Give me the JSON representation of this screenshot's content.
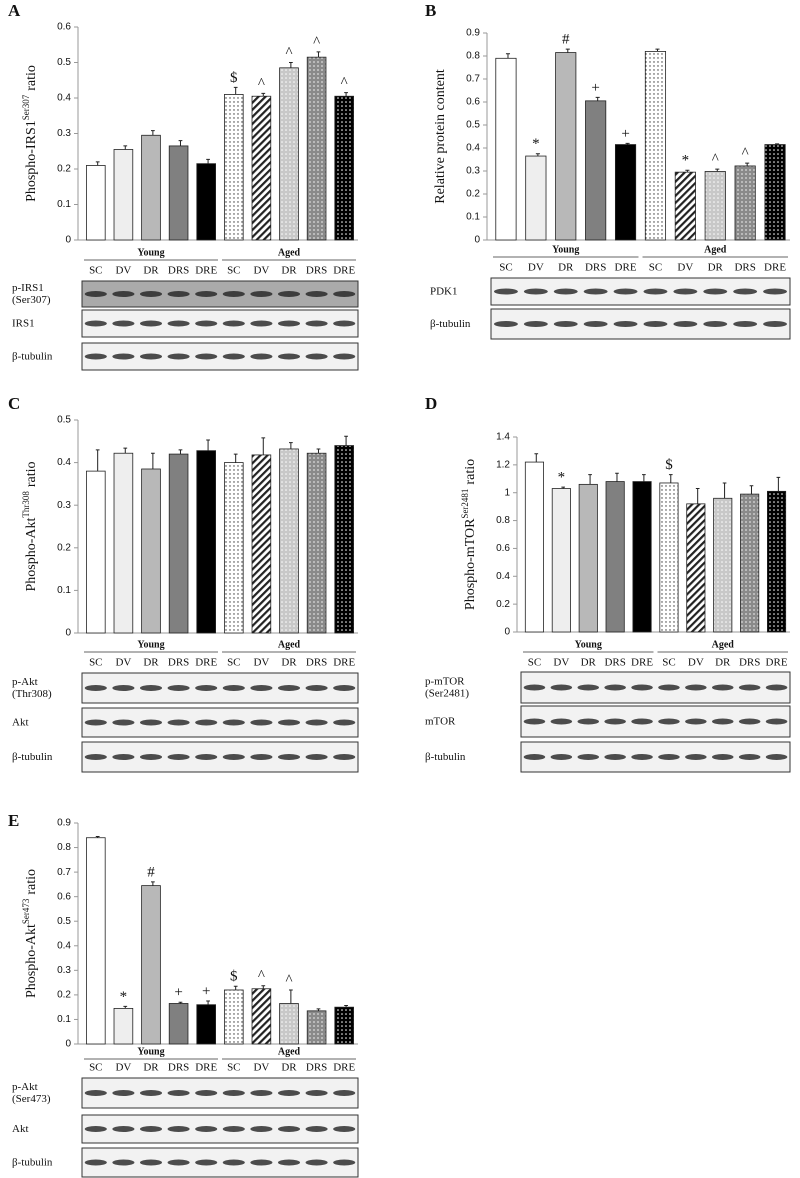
{
  "chart_data": [
    {
      "type": "bar",
      "panel_label": "A",
      "y_label": [
        "Phospho-IRS1",
        "Ser307",
        "ratio"
      ],
      "categories": [
        "SC",
        "DV",
        "DR",
        "DRS",
        "DRE",
        "SC",
        "DV",
        "DR",
        "DRS",
        "DRE"
      ],
      "groups": [
        "Young",
        "Aged"
      ],
      "values": [
        0.21,
        0.255,
        0.295,
        0.265,
        0.215,
        0.41,
        0.405,
        0.485,
        0.515,
        0.405
      ],
      "errors": [
        0.01,
        0.01,
        0.013,
        0.015,
        0.012,
        0.02,
        0.008,
        0.015,
        0.015,
        0.01
      ],
      "annotations": [
        null,
        null,
        null,
        null,
        null,
        "$",
        "^",
        "^",
        "^",
        "^"
      ],
      "ylim": [
        0,
        0.6
      ],
      "yticks": [
        0,
        0.1,
        0.2,
        0.3,
        0.4,
        0.5,
        0.6
      ],
      "blots": [
        [
          "p-IRS1",
          "(Ser307)"
        ],
        [
          "IRS1"
        ],
        [
          "β-tubulin"
        ]
      ]
    },
    {
      "type": "bar",
      "panel_label": "B",
      "y_label": [
        "Relative protein content"
      ],
      "categories": [
        "SC",
        "DV",
        "DR",
        "DRS",
        "DRE",
        "SC",
        "DV",
        "DR",
        "DRS",
        "DRE"
      ],
      "groups": [
        "Young",
        "Aged"
      ],
      "values": [
        0.79,
        0.365,
        0.815,
        0.605,
        0.415,
        0.82,
        0.295,
        0.298,
        0.322,
        0.415
      ],
      "errors": [
        0.02,
        0.01,
        0.015,
        0.015,
        0.005,
        0.01,
        0.008,
        0.01,
        0.012,
        0.003
      ],
      "annotations": [
        null,
        "*",
        "#",
        "+",
        "+",
        null,
        "*",
        "^",
        "^",
        null
      ],
      "ylim": [
        0,
        0.9
      ],
      "yticks": [
        0,
        0.1,
        0.2,
        0.3,
        0.4,
        0.5,
        0.6,
        0.7,
        0.8,
        0.9
      ],
      "blots": [
        [
          "PDK1"
        ],
        [
          "β-tubulin"
        ]
      ]
    },
    {
      "type": "bar",
      "panel_label": "C",
      "y_label": [
        "Phospho-Akt",
        "Thr308",
        "ratio"
      ],
      "categories": [
        "SC",
        "DV",
        "DR",
        "DRS",
        "DRE",
        "SC",
        "DV",
        "DR",
        "DRS",
        "DRE"
      ],
      "groups": [
        "Young",
        "Aged"
      ],
      "values": [
        0.38,
        0.422,
        0.385,
        0.42,
        0.428,
        0.4,
        0.418,
        0.432,
        0.422,
        0.44
      ],
      "errors": [
        0.05,
        0.012,
        0.037,
        0.01,
        0.025,
        0.02,
        0.04,
        0.015,
        0.01,
        0.022
      ],
      "annotations": [
        null,
        null,
        null,
        null,
        null,
        null,
        null,
        null,
        null,
        null
      ],
      "ylim": [
        0,
        0.5
      ],
      "yticks": [
        0,
        0.1,
        0.2,
        0.3,
        0.4,
        0.5
      ],
      "blots": [
        [
          "p-Akt",
          "(Thr308)"
        ],
        [
          "Akt"
        ],
        [
          "β-tubulin"
        ]
      ]
    },
    {
      "type": "bar",
      "panel_label": "D",
      "y_label": [
        "Phospho-mTOR",
        "Ser2481",
        "ratio"
      ],
      "categories": [
        "SC",
        "DV",
        "DR",
        "DRS",
        "DRE",
        "SC",
        "DV",
        "DR",
        "DRS",
        "DRE"
      ],
      "groups": [
        "Young",
        "Aged"
      ],
      "values": [
        1.22,
        1.03,
        1.06,
        1.08,
        1.08,
        1.07,
        0.92,
        0.96,
        0.99,
        1.01
      ],
      "errors": [
        0.06,
        0.01,
        0.07,
        0.06,
        0.05,
        0.06,
        0.11,
        0.11,
        0.06,
        0.1
      ],
      "annotations": [
        null,
        "*",
        null,
        null,
        null,
        "$",
        null,
        null,
        null,
        null
      ],
      "ylim": [
        0,
        1.4
      ],
      "yticks": [
        0,
        0.2,
        0.4,
        0.6,
        0.8,
        1,
        1.2,
        1.4
      ],
      "blots": [
        [
          "p-mTOR",
          "(Ser2481)"
        ],
        [
          "mTOR"
        ],
        [
          "β-tubulin"
        ]
      ]
    },
    {
      "type": "bar",
      "panel_label": "E",
      "y_label": [
        "Phospho-Akt",
        "Ser473",
        "ratio"
      ],
      "categories": [
        "SC",
        "DV",
        "DR",
        "DRS",
        "DRE",
        "SC",
        "DV",
        "DR",
        "DRS",
        "DRE"
      ],
      "groups": [
        "Young",
        "Aged"
      ],
      "values": [
        0.84,
        0.145,
        0.645,
        0.165,
        0.16,
        0.22,
        0.225,
        0.165,
        0.135,
        0.15
      ],
      "errors": [
        0.005,
        0.008,
        0.015,
        0.005,
        0.015,
        0.015,
        0.012,
        0.055,
        0.008,
        0.007
      ],
      "annotations": [
        null,
        "*",
        "#",
        "+",
        "+",
        "$",
        "^",
        "^",
        null,
        null
      ],
      "ylim": [
        0,
        0.9
      ],
      "yticks": [
        0,
        0.1,
        0.2,
        0.3,
        0.4,
        0.5,
        0.6,
        0.7,
        0.8,
        0.9
      ],
      "blots": [
        [
          "p-Akt",
          "(Ser473)"
        ],
        [
          "Akt"
        ],
        [
          "β-tubulin"
        ]
      ]
    }
  ]
}
